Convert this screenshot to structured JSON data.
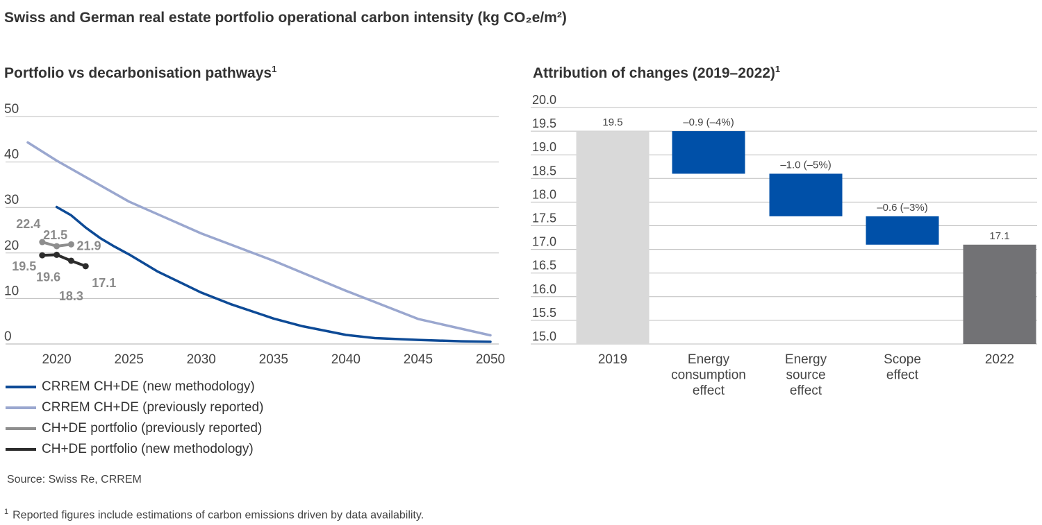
{
  "title": "Swiss and German real estate portfolio operational carbon intensity (kg CO₂e/m²)",
  "colors": {
    "crrem_new": "#0d4a96",
    "crrem_prev": "#9aa7cf",
    "portfolio_prev": "#8e8e8e",
    "portfolio_new": "#2c2c2c",
    "bar_start": "#d9d9d9",
    "bar_delta": "#0050a8",
    "bar_end": "#727275",
    "grid": "#bdbdbd"
  },
  "legend": [
    {
      "label": "CRREM CH+DE (new methodology)",
      "color": "#0d4a96"
    },
    {
      "label": "CRREM CH+DE (previously reported)",
      "color": "#9aa7cf"
    },
    {
      "label": "CH+DE portfolio (previously reported)",
      "color": "#8e8e8e"
    },
    {
      "label": "CH+DE portfolio (new methodology)",
      "color": "#2c2c2c"
    }
  ],
  "source": "Source: Swiss Re, CRREM",
  "footnote": {
    "marker": "1",
    "text": "Reported figures include estimations of carbon emissions driven by data availability."
  },
  "chart_data": [
    {
      "type": "line",
      "title": "Portfolio vs decarbonisation pathways",
      "title_sup": "1",
      "xlim": [
        2017.5,
        2050.5
      ],
      "ylim": [
        0,
        50
      ],
      "x_ticks": [
        2020,
        2025,
        2030,
        2035,
        2040,
        2045,
        2050
      ],
      "y_ticks": [
        0,
        10,
        20,
        30,
        40,
        50
      ],
      "series": [
        {
          "name": "CRREM CH+DE (previously reported)",
          "key": "crrem_prev",
          "x": [
            2018,
            2020,
            2025,
            2030,
            2035,
            2040,
            2045,
            2050
          ],
          "y": [
            44.3,
            40.3,
            31.3,
            24.3,
            18.3,
            11.7,
            5.5,
            1.9
          ]
        },
        {
          "name": "CRREM CH+DE (new methodology)",
          "key": "crrem_new",
          "x": [
            2020,
            2021,
            2022,
            2023,
            2024,
            2025,
            2027,
            2030,
            2032,
            2035,
            2037,
            2040,
            2042,
            2045,
            2048,
            2050
          ],
          "y": [
            30.1,
            28.3,
            25.6,
            23.3,
            21.4,
            19.7,
            15.9,
            11.3,
            8.8,
            5.6,
            3.9,
            2.0,
            1.3,
            0.9,
            0.6,
            0.5
          ]
        },
        {
          "name": "CH+DE portfolio (previously reported)",
          "key": "portfolio_prev",
          "x": [
            2019,
            2020,
            2021
          ],
          "y": [
            22.4,
            21.5,
            21.9
          ],
          "labels": [
            "22.4",
            "21.5",
            "21.9"
          ]
        },
        {
          "name": "CH+DE portfolio (new methodology)",
          "key": "portfolio_new",
          "x": [
            2019,
            2020,
            2021,
            2022
          ],
          "y": [
            19.5,
            19.6,
            18.3,
            17.1
          ],
          "labels": [
            "19.5",
            "19.6",
            "18.3",
            "17.1"
          ]
        }
      ]
    },
    {
      "type": "waterfall",
      "title": "Attribution of changes (2019–2022)",
      "title_sup": "1",
      "ylim": [
        15.0,
        20.0
      ],
      "y_ticks": [
        "15.0",
        "15.5",
        "16.0",
        "16.5",
        "17.0",
        "17.5",
        "18.0",
        "18.5",
        "19.0",
        "19.5",
        "20.0"
      ],
      "categories": [
        [
          "2019"
        ],
        [
          "Energy",
          "consumption",
          "effect"
        ],
        [
          "Energy",
          "source",
          "effect"
        ],
        [
          "Scope",
          "effect"
        ],
        [
          "2022"
        ]
      ],
      "bars": [
        {
          "kind": "total",
          "value": 19.5,
          "label": "19.5"
        },
        {
          "kind": "delta",
          "from": 19.5,
          "to": 18.6,
          "label": "–0.9 (–4%)"
        },
        {
          "kind": "delta",
          "from": 18.6,
          "to": 17.7,
          "label": "–1.0 (–5%)"
        },
        {
          "kind": "delta",
          "from": 17.7,
          "to": 17.1,
          "label": "–0.6 (–3%)"
        },
        {
          "kind": "total_end",
          "value": 17.1,
          "label": "17.1"
        }
      ]
    }
  ]
}
